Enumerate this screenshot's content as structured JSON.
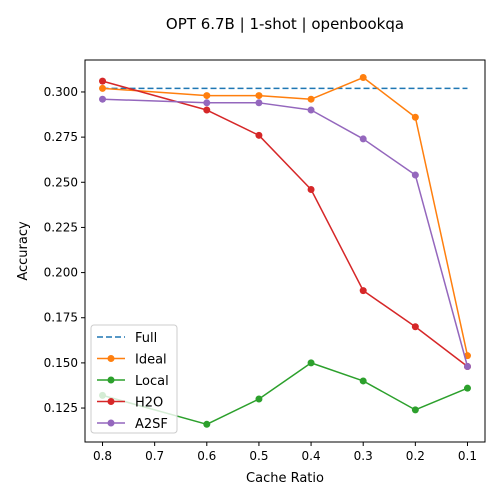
{
  "chart_data": {
    "type": "line",
    "title": "OPT 6.7B | 1-shot | openbookqa",
    "xlabel": "Cache Ratio",
    "ylabel": "Accuracy",
    "x": [
      0.8,
      0.6,
      0.5,
      0.4,
      0.3,
      0.2,
      0.1
    ],
    "x_ticks": [
      "0.8",
      "0.7",
      "0.6",
      "0.5",
      "0.4",
      "0.3",
      "0.2",
      "0.1"
    ],
    "x_tick_values": [
      0.8,
      0.7,
      0.6,
      0.5,
      0.4,
      0.3,
      0.2,
      0.1
    ],
    "xlim": [
      0.8336,
      0.0664
    ],
    "x_inverted": true,
    "y_ticks": [
      "0.125",
      "0.150",
      "0.175",
      "0.200",
      "0.225",
      "0.250",
      "0.275",
      "0.300"
    ],
    "y_tick_values": [
      0.125,
      0.15,
      0.175,
      0.2,
      0.225,
      0.25,
      0.275,
      0.3
    ],
    "ylim": [
      0.1062,
      0.3177
    ],
    "grid": false,
    "legend_position": "lower-left",
    "series": [
      {
        "name": "Full",
        "color": "#1f77b4",
        "style": "dashed",
        "markers": false,
        "values": [
          0.302,
          0.302,
          0.302,
          0.302,
          0.302,
          0.302,
          0.302
        ]
      },
      {
        "name": "Ideal",
        "color": "#ff7f0e",
        "style": "solid",
        "markers": true,
        "values": [
          0.302,
          0.298,
          0.298,
          0.296,
          0.308,
          0.286,
          0.154
        ]
      },
      {
        "name": "Local",
        "color": "#2ca02c",
        "style": "solid",
        "markers": true,
        "values": [
          0.132,
          0.116,
          0.13,
          0.15,
          0.14,
          0.124,
          0.136
        ]
      },
      {
        "name": "H2O",
        "color": "#d62728",
        "style": "solid",
        "markers": true,
        "values": [
          0.306,
          0.29,
          0.276,
          0.246,
          0.19,
          0.17,
          0.148
        ]
      },
      {
        "name": "A2SF",
        "color": "#9467bd",
        "style": "solid",
        "markers": true,
        "values": [
          0.296,
          0.294,
          0.294,
          0.29,
          0.274,
          0.254,
          0.148
        ]
      }
    ]
  }
}
